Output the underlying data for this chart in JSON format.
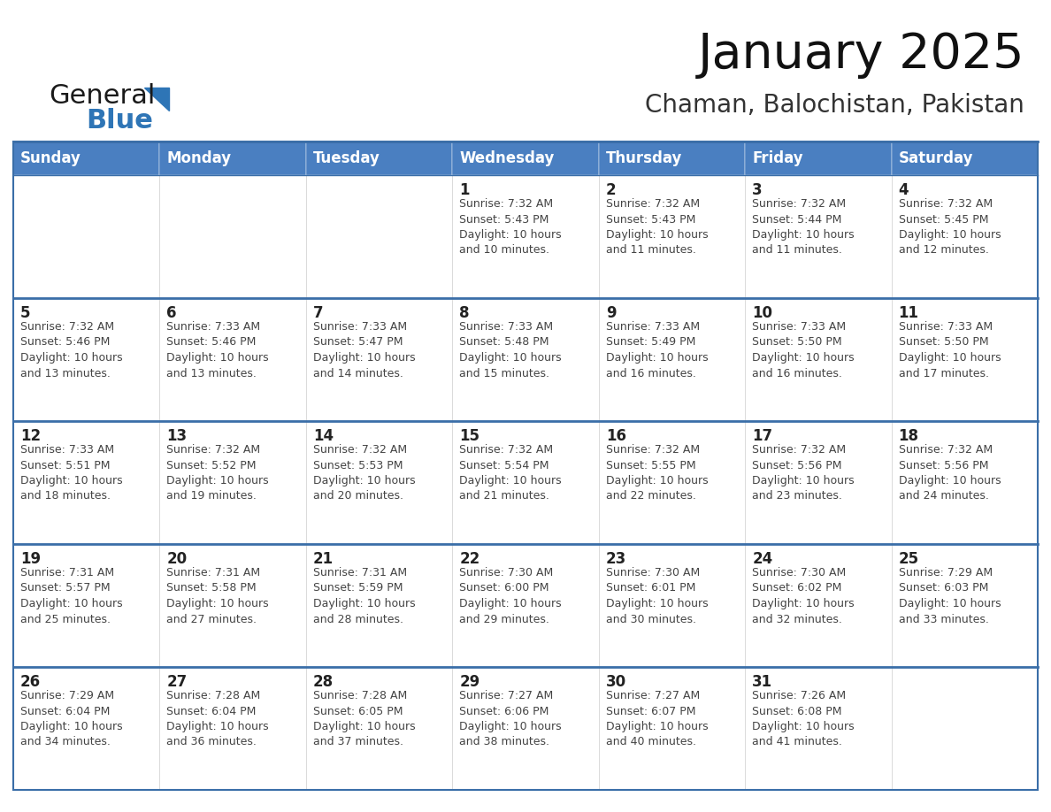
{
  "title": "January 2025",
  "subtitle": "Chaman, Balochistan, Pakistan",
  "header_color": "#4A7FC1",
  "header_text_color": "#FFFFFF",
  "cell_bg_color": "#FFFFFF",
  "cell_bg_alt": "#F2F2F2",
  "cell_border_color": "#4A7FC1",
  "row_divider_color": "#3A6EA8",
  "day_number_color": "#333333",
  "cell_text_color": "#444444",
  "days_of_week": [
    "Sunday",
    "Monday",
    "Tuesday",
    "Wednesday",
    "Thursday",
    "Friday",
    "Saturday"
  ],
  "calendar_data": [
    [
      {
        "day": "",
        "info": ""
      },
      {
        "day": "",
        "info": ""
      },
      {
        "day": "",
        "info": ""
      },
      {
        "day": "1",
        "info": "Sunrise: 7:32 AM\nSunset: 5:43 PM\nDaylight: 10 hours\nand 10 minutes."
      },
      {
        "day": "2",
        "info": "Sunrise: 7:32 AM\nSunset: 5:43 PM\nDaylight: 10 hours\nand 11 minutes."
      },
      {
        "day": "3",
        "info": "Sunrise: 7:32 AM\nSunset: 5:44 PM\nDaylight: 10 hours\nand 11 minutes."
      },
      {
        "day": "4",
        "info": "Sunrise: 7:32 AM\nSunset: 5:45 PM\nDaylight: 10 hours\nand 12 minutes."
      }
    ],
    [
      {
        "day": "5",
        "info": "Sunrise: 7:32 AM\nSunset: 5:46 PM\nDaylight: 10 hours\nand 13 minutes."
      },
      {
        "day": "6",
        "info": "Sunrise: 7:33 AM\nSunset: 5:46 PM\nDaylight: 10 hours\nand 13 minutes."
      },
      {
        "day": "7",
        "info": "Sunrise: 7:33 AM\nSunset: 5:47 PM\nDaylight: 10 hours\nand 14 minutes."
      },
      {
        "day": "8",
        "info": "Sunrise: 7:33 AM\nSunset: 5:48 PM\nDaylight: 10 hours\nand 15 minutes."
      },
      {
        "day": "9",
        "info": "Sunrise: 7:33 AM\nSunset: 5:49 PM\nDaylight: 10 hours\nand 16 minutes."
      },
      {
        "day": "10",
        "info": "Sunrise: 7:33 AM\nSunset: 5:50 PM\nDaylight: 10 hours\nand 16 minutes."
      },
      {
        "day": "11",
        "info": "Sunrise: 7:33 AM\nSunset: 5:50 PM\nDaylight: 10 hours\nand 17 minutes."
      }
    ],
    [
      {
        "day": "12",
        "info": "Sunrise: 7:33 AM\nSunset: 5:51 PM\nDaylight: 10 hours\nand 18 minutes."
      },
      {
        "day": "13",
        "info": "Sunrise: 7:32 AM\nSunset: 5:52 PM\nDaylight: 10 hours\nand 19 minutes."
      },
      {
        "day": "14",
        "info": "Sunrise: 7:32 AM\nSunset: 5:53 PM\nDaylight: 10 hours\nand 20 minutes."
      },
      {
        "day": "15",
        "info": "Sunrise: 7:32 AM\nSunset: 5:54 PM\nDaylight: 10 hours\nand 21 minutes."
      },
      {
        "day": "16",
        "info": "Sunrise: 7:32 AM\nSunset: 5:55 PM\nDaylight: 10 hours\nand 22 minutes."
      },
      {
        "day": "17",
        "info": "Sunrise: 7:32 AM\nSunset: 5:56 PM\nDaylight: 10 hours\nand 23 minutes."
      },
      {
        "day": "18",
        "info": "Sunrise: 7:32 AM\nSunset: 5:56 PM\nDaylight: 10 hours\nand 24 minutes."
      }
    ],
    [
      {
        "day": "19",
        "info": "Sunrise: 7:31 AM\nSunset: 5:57 PM\nDaylight: 10 hours\nand 25 minutes."
      },
      {
        "day": "20",
        "info": "Sunrise: 7:31 AM\nSunset: 5:58 PM\nDaylight: 10 hours\nand 27 minutes."
      },
      {
        "day": "21",
        "info": "Sunrise: 7:31 AM\nSunset: 5:59 PM\nDaylight: 10 hours\nand 28 minutes."
      },
      {
        "day": "22",
        "info": "Sunrise: 7:30 AM\nSunset: 6:00 PM\nDaylight: 10 hours\nand 29 minutes."
      },
      {
        "day": "23",
        "info": "Sunrise: 7:30 AM\nSunset: 6:01 PM\nDaylight: 10 hours\nand 30 minutes."
      },
      {
        "day": "24",
        "info": "Sunrise: 7:30 AM\nSunset: 6:02 PM\nDaylight: 10 hours\nand 32 minutes."
      },
      {
        "day": "25",
        "info": "Sunrise: 7:29 AM\nSunset: 6:03 PM\nDaylight: 10 hours\nand 33 minutes."
      }
    ],
    [
      {
        "day": "26",
        "info": "Sunrise: 7:29 AM\nSunset: 6:04 PM\nDaylight: 10 hours\nand 34 minutes."
      },
      {
        "day": "27",
        "info": "Sunrise: 7:28 AM\nSunset: 6:04 PM\nDaylight: 10 hours\nand 36 minutes."
      },
      {
        "day": "28",
        "info": "Sunrise: 7:28 AM\nSunset: 6:05 PM\nDaylight: 10 hours\nand 37 minutes."
      },
      {
        "day": "29",
        "info": "Sunrise: 7:27 AM\nSunset: 6:06 PM\nDaylight: 10 hours\nand 38 minutes."
      },
      {
        "day": "30",
        "info": "Sunrise: 7:27 AM\nSunset: 6:07 PM\nDaylight: 10 hours\nand 40 minutes."
      },
      {
        "day": "31",
        "info": "Sunrise: 7:26 AM\nSunset: 6:08 PM\nDaylight: 10 hours\nand 41 minutes."
      },
      {
        "day": "",
        "info": ""
      }
    ]
  ],
  "logo_text_general": "General",
  "logo_text_blue": "Blue",
  "logo_color_general": "#1a1a1a",
  "logo_color_blue": "#2E75B6",
  "logo_triangle_color": "#2E75B6",
  "title_fontsize": 40,
  "subtitle_fontsize": 20,
  "header_fontsize": 12,
  "day_num_fontsize": 12,
  "cell_text_fontsize": 9
}
